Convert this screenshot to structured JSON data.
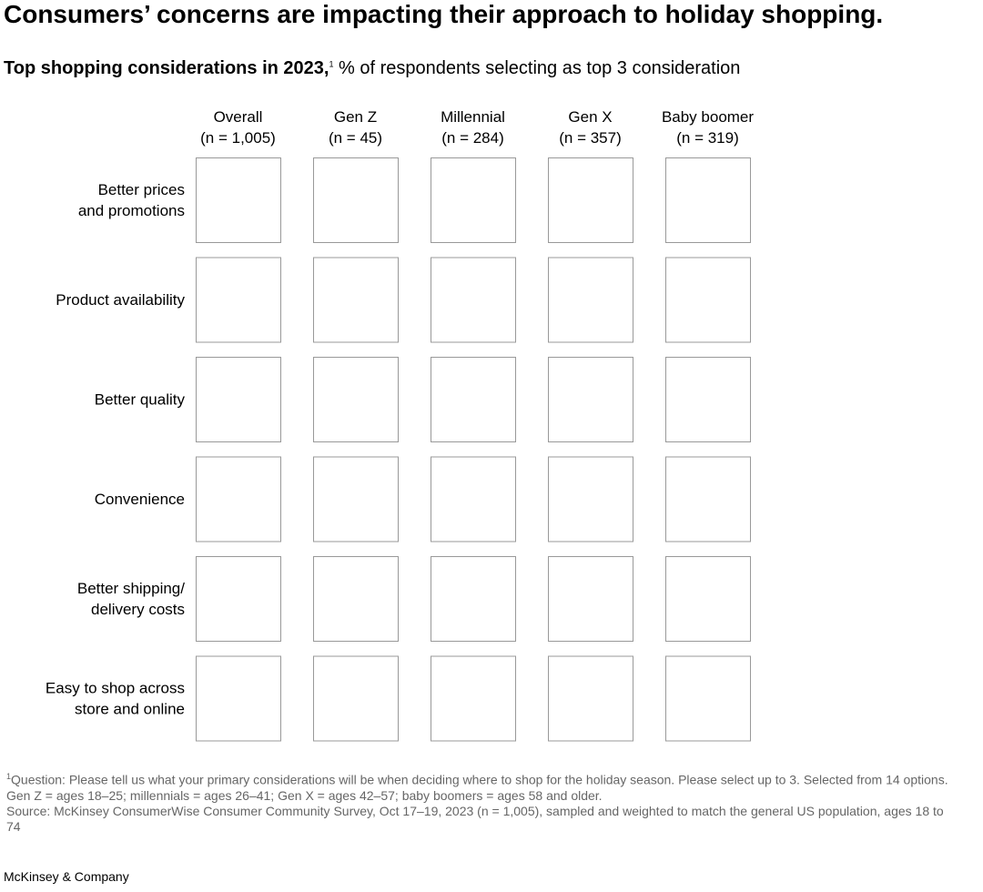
{
  "header": {
    "title": "Consumers’ concerns are impacting their approach to holiday shopping.",
    "subtitle_bold": "Top shopping considerations in 2023,",
    "subtitle_note": "1",
    "subtitle_rest": "% of respondents selecting as top 3 consideration"
  },
  "columns": [
    {
      "name": "Overall",
      "sample": "(n = 1,005)"
    },
    {
      "name": "Gen Z",
      "sample": "(n = 45)"
    },
    {
      "name": "Millennial",
      "sample": "(n = 284)"
    },
    {
      "name": "Gen X",
      "sample": "(n = 357)"
    },
    {
      "name": "Baby boomer",
      "sample": "(n = 319)"
    }
  ],
  "rows": [
    [
      "Better prices",
      "and promotions"
    ],
    [
      "Product availability"
    ],
    [
      "Better quality"
    ],
    [
      "Convenience"
    ],
    [
      "Better shipping/",
      "delivery costs"
    ],
    [
      "Easy to shop across",
      "store and online"
    ]
  ],
  "footer": {
    "note_mark": "1",
    "note": "Question: Please tell us what your primary considerations will be when deciding where to shop for the holiday season. Please select up to 3. Selected from 14 options. Gen Z = ages 18–25; millennials = ages 26–41; Gen X = ages 42–57; baby boomers = ages 58 and older.",
    "source": "Source: McKinsey ConsumerWise Consumer Community Survey, Oct 17–19, 2023 (n = 1,005), sampled and weighted to match the general US population, ages 18 to 74",
    "brand": "McKinsey & Company"
  }
}
